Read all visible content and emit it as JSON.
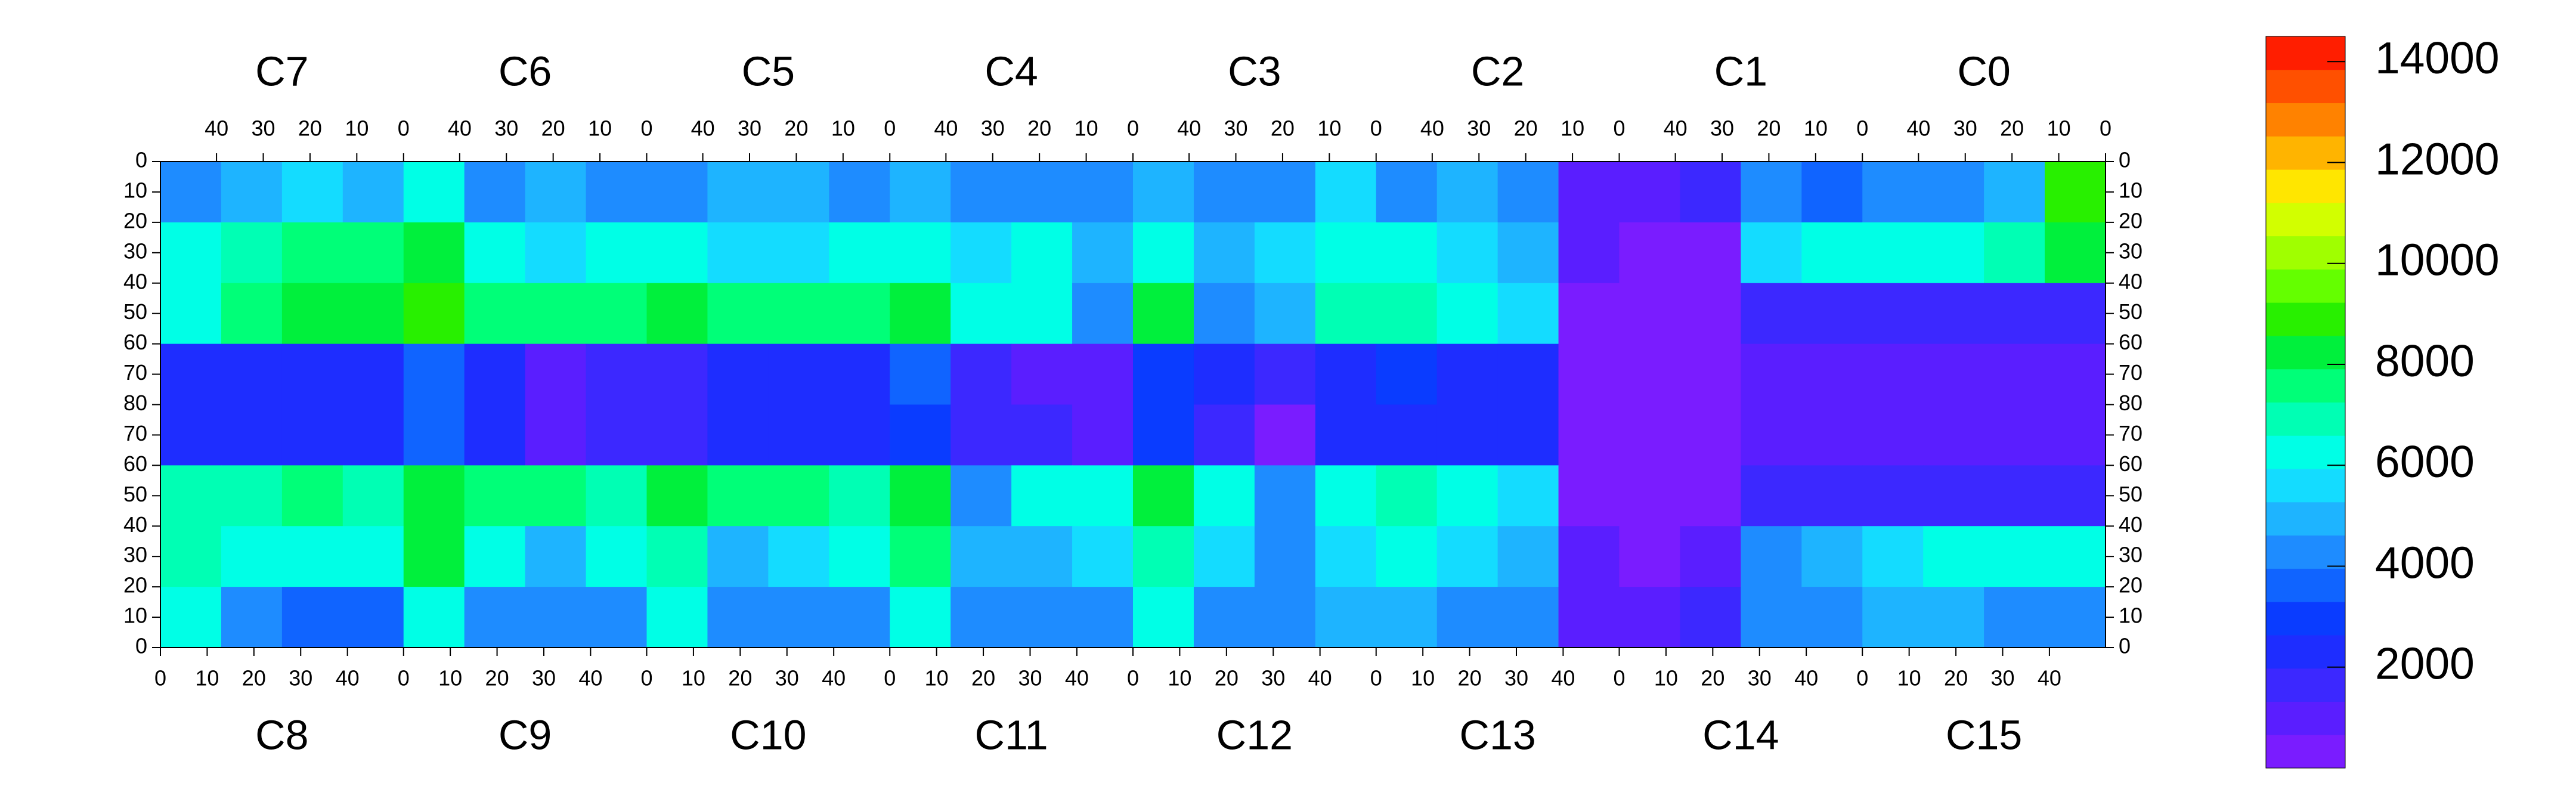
{
  "chart_data": {
    "type": "heatmap",
    "top_chips": [
      "C7",
      "C6",
      "C5",
      "C4",
      "C3",
      "C2",
      "C1",
      "C0"
    ],
    "bottom_chips": [
      "C8",
      "C9",
      "C10",
      "C11",
      "C12",
      "C13",
      "C14",
      "C15"
    ],
    "xlim": [
      0,
      52
    ],
    "xticks": [
      0,
      10,
      20,
      30,
      40
    ],
    "ylim": [
      0,
      80
    ],
    "yticks": [
      0,
      10,
      20,
      30,
      40,
      50,
      60,
      70,
      80
    ],
    "values": [
      [
        4500,
        5000,
        5500,
        5000,
        6500,
        4500,
        5000,
        4500,
        4500,
        5000,
        5000,
        4500,
        5000,
        4500,
        4500,
        4500,
        5000,
        4500,
        4500,
        5500,
        4500,
        5000,
        4000,
        1000,
        800,
        1500,
        4000,
        3500,
        4000,
        4500,
        5000,
        9000
      ],
      [
        6000,
        7000,
        7500,
        7500,
        8000,
        6000,
        5500,
        6000,
        6500,
        5500,
        5500,
        6000,
        6500,
        5500,
        6000,
        5000,
        6000,
        5000,
        5500,
        6000,
        6000,
        5500,
        5000,
        800,
        500,
        600,
        5500,
        6000,
        6000,
        6500,
        7000,
        8000
      ],
      [
        6500,
        7500,
        8000,
        8000,
        9000,
        7500,
        7500,
        7500,
        8500,
        7500,
        7500,
        7500,
        8000,
        6500,
        6000,
        4000,
        8000,
        4500,
        5000,
        7000,
        7000,
        6000,
        5500,
        600,
        400,
        500,
        1500,
        1500,
        1500,
        1500,
        1500,
        1500
      ],
      [
        2500,
        2000,
        2500,
        2500,
        3500,
        2500,
        1200,
        1500,
        1500,
        2500,
        2500,
        2500,
        3500,
        1500,
        1200,
        1000,
        3000,
        2000,
        1500,
        2500,
        3000,
        2500,
        2000,
        500,
        400,
        600,
        1000,
        1000,
        1000,
        1000,
        1000,
        1000
      ],
      [
        2500,
        2000,
        2500,
        2500,
        3500,
        2500,
        1200,
        1500,
        1500,
        2500,
        2500,
        2500,
        3000,
        1500,
        1500,
        1000,
        3000,
        1500,
        500,
        2500,
        2500,
        2500,
        2000,
        500,
        400,
        600,
        1000,
        1000,
        1000,
        1000,
        1000,
        1000
      ],
      [
        7000,
        7000,
        7500,
        7000,
        8500,
        7500,
        7500,
        7000,
        8500,
        7500,
        7500,
        7000,
        8500,
        4000,
        6000,
        6000,
        8000,
        6000,
        4500,
        6000,
        7000,
        6000,
        5500,
        600,
        400,
        500,
        1500,
        1500,
        1500,
        1500,
        1500,
        1500
      ],
      [
        7000,
        6500,
        6500,
        6500,
        8000,
        6000,
        5000,
        6000,
        7000,
        5000,
        5500,
        6000,
        7500,
        5000,
        5000,
        5500,
        7000,
        5500,
        4500,
        5500,
        6000,
        5500,
        5000,
        700,
        500,
        800,
        4500,
        5000,
        5500,
        6000,
        6500,
        6500
      ],
      [
        6000,
        4000,
        3500,
        3500,
        6000,
        4000,
        4000,
        4500,
        6500,
        4500,
        4500,
        4500,
        6500,
        4000,
        4000,
        4500,
        6000,
        4500,
        4000,
        5000,
        5000,
        4500,
        4000,
        1000,
        800,
        1500,
        4000,
        4500,
        5000,
        5000,
        4500,
        4500
      ]
    ],
    "zlim": [
      0,
      14500
    ],
    "zticks": [
      2000,
      4000,
      6000,
      8000,
      10000,
      12000,
      14000
    ],
    "palette": [
      "#7a1cff",
      "#5a1eff",
      "#3c28ff",
      "#1e2dff",
      "#0a3cff",
      "#1064ff",
      "#1e8cff",
      "#1eb4ff",
      "#14dcff",
      "#00ffe6",
      "#00ffb4",
      "#00ff78",
      "#00f03c",
      "#28f000",
      "#64ff00",
      "#a0ff00",
      "#d2ff00",
      "#ffe600",
      "#ffb400",
      "#ff8200",
      "#ff5000",
      "#ff1e00"
    ]
  }
}
